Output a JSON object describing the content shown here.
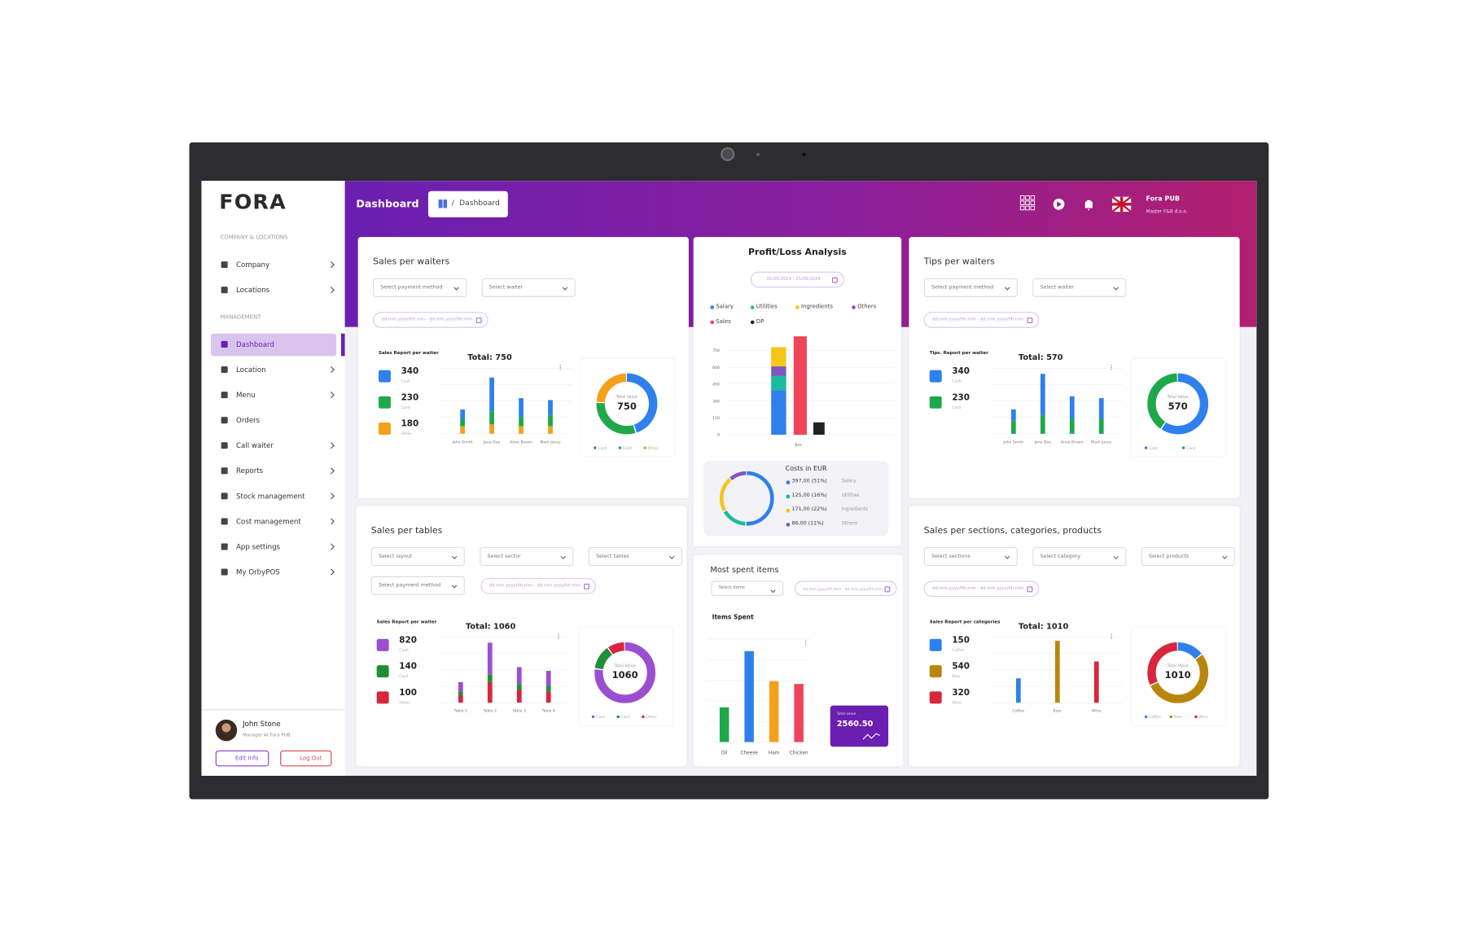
{
  "sidebar": {
    "logo": "FORA",
    "sections": [
      {
        "heading": "COMPANY & LOCATIONS",
        "items": [
          {
            "label": "Company",
            "expandable": true
          },
          {
            "label": "Locations",
            "expandable": true
          }
        ]
      },
      {
        "heading": "MANAGEMENT",
        "items": [
          {
            "label": "Dashboard",
            "expandable": false,
            "active": true
          },
          {
            "label": "Location",
            "expandable": true
          },
          {
            "label": "Menu",
            "expandable": true
          },
          {
            "label": "Orders",
            "expandable": false
          },
          {
            "label": "Call waiter",
            "expandable": true
          },
          {
            "label": "Reports",
            "expandable": true
          },
          {
            "label": "Stock management",
            "expandable": true
          },
          {
            "label": "Cost management",
            "expandable": true
          },
          {
            "label": "App settings",
            "expandable": true
          },
          {
            "label": "My OrbyPOS",
            "expandable": true
          }
        ]
      }
    ],
    "user": {
      "name": "John Stone",
      "role": "Manager At Fora PUB",
      "edit": "Edit Info",
      "logout": "Log Out"
    }
  },
  "header": {
    "title": "Dashboard",
    "breadcrumb": "Dashboard",
    "venue": "Fora PUB",
    "company": "Master F&B d.o.o."
  },
  "sales_per_waiters": {
    "title": "Sales per waiters",
    "filters": [
      "Select payment method",
      "Select waiter"
    ],
    "date_range": "dd.mm.yyyy/hh:mm - dd.mm.yyyy/hh:mm",
    "report_label": "Sales Report per waiter",
    "total_label": "Total: 750",
    "legend": [
      {
        "value": 340,
        "label": "Cash",
        "color": "#2f80ed"
      },
      {
        "value": 230,
        "label": "Card",
        "color": "#1fa84a"
      },
      {
        "value": 180,
        "label": "Other",
        "color": "#f5a01a"
      }
    ],
    "categories": [
      "John Smith",
      "Jane Doe",
      "Anne Brown",
      "Mark Jones"
    ],
    "bars": [
      [
        10,
        8,
        8
      ],
      [
        36,
        14,
        10
      ],
      [
        20,
        10,
        8
      ],
      [
        16,
        12,
        8
      ]
    ],
    "ylim": [
      0,
      70
    ],
    "donut_label": "Total Value",
    "total": 750
  },
  "tips_per_waiters": {
    "title": "Tips per waiters",
    "filters": [
      "Select payment method",
      "Select waiter"
    ],
    "date_range": "dd.mm.yyyy/hh:mm - dd.mm.yyyy/hh:mm",
    "report_label": "Tips. Report per waiter",
    "total_label": "Total: 570",
    "legend": [
      {
        "value": 340,
        "label": "Cash",
        "color": "#2f80ed"
      },
      {
        "value": 230,
        "label": "Card",
        "color": "#1fa84a"
      }
    ],
    "categories": [
      "John Smith",
      "Jane Doe",
      "Anne Brown",
      "Mark Jones"
    ],
    "bars": [
      [
        12,
        14
      ],
      [
        44,
        20
      ],
      [
        24,
        16
      ],
      [
        22,
        16
      ]
    ],
    "ylim": [
      0,
      70
    ],
    "donut_label": "Total Value",
    "total": 570
  },
  "sales_per_tables": {
    "title": "Sales per tables",
    "filters": [
      "Select layout",
      "Select sector",
      "Select tables",
      "Select payment method"
    ],
    "date_range": "dd.mm.yyyy/hh:mm - dd.mm.yyyy/hh:mm",
    "report_label": "Sales Report per waiter",
    "total_label": "Total: 1060",
    "legend": [
      {
        "value": 820,
        "label": "Cash",
        "color": "#9b4fd0"
      },
      {
        "value": 140,
        "label": "Card",
        "color": "#1f8f3a"
      },
      {
        "value": 100,
        "label": "Other",
        "color": "#d7263d"
      }
    ],
    "categories": [
      "Table 1",
      "Table 2",
      "Table 3",
      "Table 4"
    ],
    "bars": [
      [
        10,
        4,
        8
      ],
      [
        34,
        8,
        22
      ],
      [
        18,
        6,
        14
      ],
      [
        16,
        6,
        12
      ]
    ],
    "ylim": [
      0,
      70
    ],
    "donut_label": "Total Value",
    "total": 1060
  },
  "sales_per_sections": {
    "title": "Sales per sections, categories, products",
    "filters": [
      "Select sections",
      "Select category",
      "Select products"
    ],
    "date_range": "dd.mm.yyyy/hh:mm - dd.mm.yyyy/hh:mm",
    "report_label": "Sales Report per categories",
    "total_label": "Total: 1010",
    "legend": [
      {
        "value": 150,
        "label": "Coffee",
        "color": "#2f80ed"
      },
      {
        "value": 540,
        "label": "Beer",
        "color": "#b8860b"
      },
      {
        "value": 320,
        "label": "Wine",
        "color": "#d7263d"
      }
    ],
    "categories": [
      "Coffee",
      "Beer",
      "Wine"
    ],
    "bars": [
      26,
      66,
      44
    ],
    "ylim": [
      0,
      70
    ],
    "donut_label": "Total Value",
    "total": 1010
  },
  "profit_loss": {
    "title": "Profit/Loss Analysis",
    "date_range": "01/05/2024 - 25/06/2024",
    "legend": [
      {
        "name": "Salary",
        "color": "#2f80ed"
      },
      {
        "name": "Utilities",
        "color": "#1abc9c"
      },
      {
        "name": "Ingredients",
        "color": "#f5c518"
      },
      {
        "name": "Others",
        "color": "#7e57c2"
      },
      {
        "name": "Sales",
        "color": "#f0445a"
      },
      {
        "name": "DP",
        "color": "#222222"
      }
    ],
    "ylim": [
      0,
      900
    ],
    "yticks": [
      0,
      150,
      300,
      450,
      600,
      750
    ],
    "category": "Jun",
    "sales": 875,
    "dp": 110,
    "costs": {
      "title": "Costs in EUR",
      "items": [
        {
          "value": 397,
          "value_label": "397,00 (51%)",
          "name": "Salary"
        },
        {
          "value": 125,
          "value_label": "125,00 (16%)",
          "name": "Utilities"
        },
        {
          "value": 171,
          "value_label": "171,00 (22%)",
          "name": "Ingredients"
        },
        {
          "value": 86,
          "value_label": "86,00 (11%)",
          "name": "Others"
        }
      ]
    }
  },
  "most_spent_items": {
    "title": "Most spent items",
    "filter": "Select items",
    "date_range": "dd.mm.yyyy/hh:mm - dd.mm.yyyy/hh:mm",
    "chart_label": "Items Spent",
    "categories": [
      "Oil",
      "Cheese",
      "Ham",
      "Chicken"
    ],
    "values": [
      37,
      97,
      65,
      62
    ],
    "colors": [
      "#1fa84a",
      "#2f80ed",
      "#f5a01a",
      "#f0445a"
    ],
    "ylim": [
      0,
      110
    ],
    "total_label": "Total value",
    "total": 2560.5,
    "total_value_label": "2560.50"
  }
}
